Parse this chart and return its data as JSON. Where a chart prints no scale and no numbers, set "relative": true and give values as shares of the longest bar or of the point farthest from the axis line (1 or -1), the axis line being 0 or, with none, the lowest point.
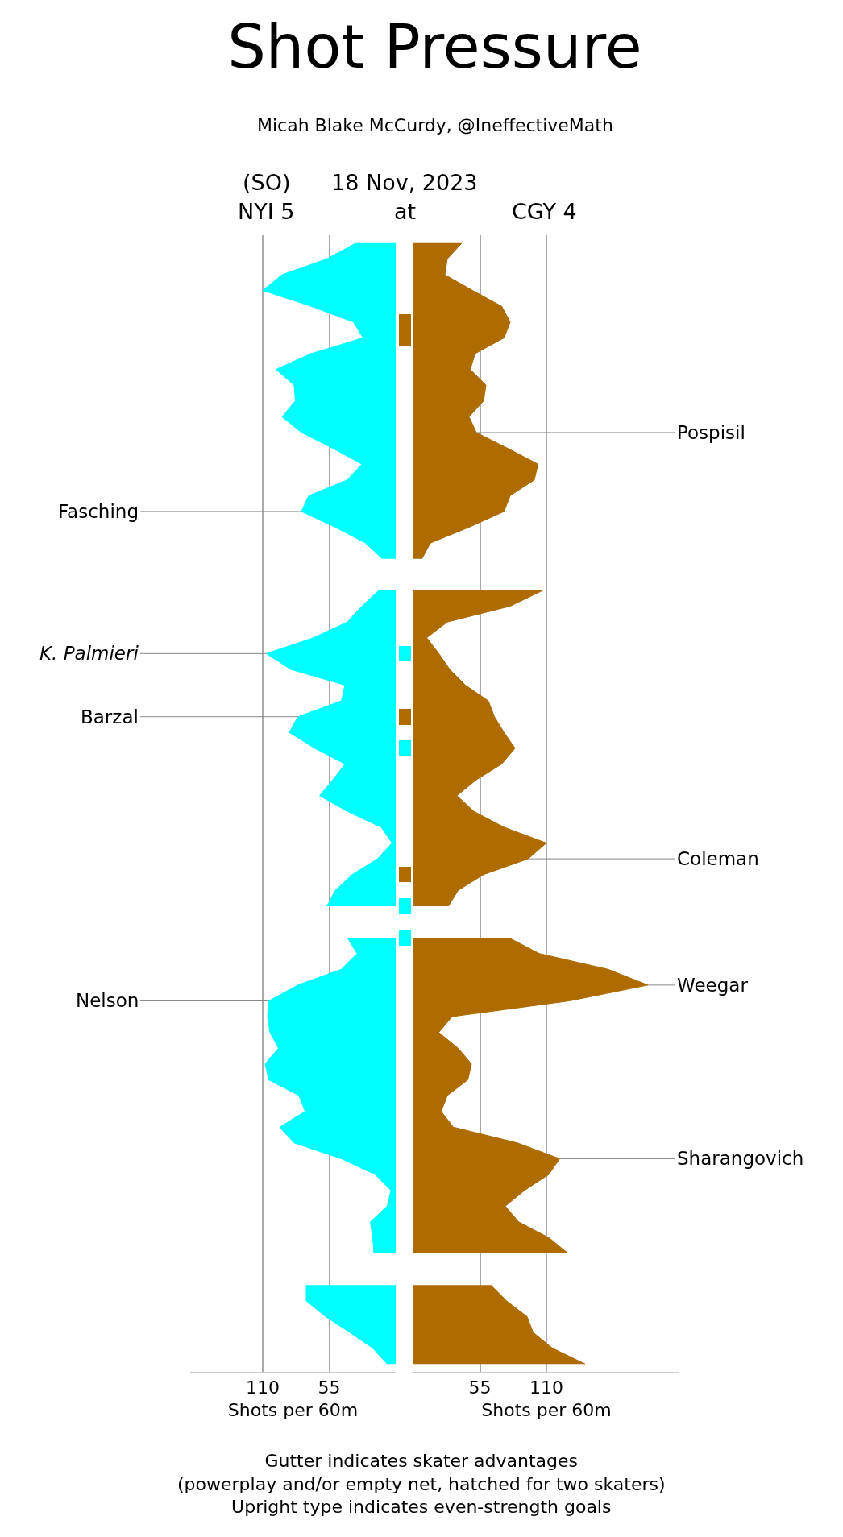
{
  "chart_data": [
    {
      "type": "area",
      "orientation": "horizontal",
      "title": "Shot Pressure",
      "subtitle": "Micah Blake McCurdy, @IneffectiveMath",
      "xlabel": "Shots per 60m",
      "xlim": [
        170,
        0
      ],
      "xticks": [
        110,
        55
      ],
      "grid": "x",
      "tick_labels": "x",
      "categories": [
        null,
        null,
        null,
        null,
        null,
        null,
        null,
        null,
        null,
        null,
        null,
        null,
        null,
        null,
        null,
        null,
        null,
        null,
        null,
        null,
        null,
        null,
        null,
        null,
        null,
        null,
        null,
        null,
        null,
        null,
        null,
        null,
        null,
        null,
        null,
        null,
        null,
        null,
        null,
        null,
        null,
        null,
        null,
        null,
        null,
        null,
        null,
        null,
        null,
        null,
        null,
        null,
        null,
        null,
        null,
        null,
        null,
        null,
        null,
        null,
        null,
        null,
        null,
        null,
        null,
        null,
        null,
        null,
        null,
        null,
        null,
        null
      ],
      "series": [
        {
          "name": "NYI 5",
          "color": "#00ffff",
          "values": [
            33,
            57,
            94,
            110,
            70,
            35,
            27,
            70,
            99,
            84,
            83,
            94,
            78,
            52,
            28,
            40,
            72,
            78,
            50,
            25,
            11,
            null,
            14,
            28,
            40,
            68,
            107,
            87,
            42,
            45,
            81,
            88,
            67,
            42,
            52,
            63,
            40,
            12,
            3,
            15,
            36,
            50,
            57,
            null,
            40,
            32,
            45,
            81,
            105,
            106,
            104,
            97,
            108,
            105,
            80,
            75,
            96,
            84,
            45,
            17,
            4,
            7,
            21,
            19,
            18,
            null,
            74,
            74,
            58,
            38,
            19,
            7
          ]
        }
      ],
      "annotations": [
        "Fasching",
        "K. Palmieri",
        "Barzal",
        "Nelson",
        "(SO)",
        "18 Nov, 2023",
        "at",
        "Gutter indicates skater advantages\n(powerplay and/or empty net, hatched for two skaters)\nUpright type indicates even-strength goals"
      ]
    },
    {
      "type": "bar",
      "orientation": "horizontal",
      "relative": true,
      "stacked": true,
      "tick_labels": false,
      "categories": [
        null,
        null,
        null,
        null,
        null,
        null,
        null,
        null,
        null,
        null,
        null,
        null,
        null,
        null,
        null,
        null,
        null,
        null,
        null,
        null,
        null,
        null,
        null,
        null,
        null,
        null,
        null,
        null,
        null,
        null,
        null,
        null,
        null,
        null,
        null,
        null,
        null,
        null,
        null,
        null,
        null,
        null,
        null,
        null,
        null,
        null,
        null,
        null,
        null,
        null,
        null,
        null,
        null,
        null,
        null,
        null,
        null,
        null,
        null,
        null,
        null,
        null,
        null,
        null,
        null,
        null,
        null,
        null,
        null,
        null,
        null,
        null
      ],
      "series": [
        {
          "color": "#00ffff",
          "values": [
            null,
            null,
            null,
            null,
            null,
            null,
            null,
            null,
            null,
            null,
            null,
            null,
            null,
            null,
            null,
            null,
            null,
            null,
            null,
            null,
            null,
            null,
            null,
            null,
            null,
            null,
            1,
            null,
            null,
            null,
            null,
            null,
            1,
            null,
            null,
            null,
            null,
            null,
            null,
            null,
            null,
            null,
            1,
            null,
            1,
            null,
            null,
            null,
            null,
            null,
            null,
            null,
            null,
            null,
            null,
            null,
            null,
            null,
            null,
            null,
            null,
            null,
            null,
            null,
            null,
            null,
            null,
            null,
            null,
            null,
            null,
            null
          ]
        },
        {
          "color": "#ad6b00",
          "values": [
            null,
            null,
            null,
            null,
            null,
            1,
            1,
            null,
            null,
            null,
            null,
            null,
            null,
            null,
            null,
            null,
            null,
            null,
            null,
            null,
            null,
            null,
            null,
            null,
            null,
            null,
            null,
            null,
            null,
            null,
            1,
            null,
            null,
            null,
            null,
            null,
            null,
            null,
            null,
            null,
            1,
            null,
            null,
            null,
            null,
            null,
            null,
            null,
            null,
            null,
            null,
            null,
            null,
            null,
            null,
            null,
            null,
            null,
            null,
            null,
            null,
            null,
            null,
            null,
            null,
            null,
            null,
            null,
            null,
            null,
            null,
            null
          ]
        }
      ]
    },
    {
      "type": "area",
      "orientation": "horizontal",
      "xlabel": "Shots per 60m",
      "xlim": [
        0,
        220
      ],
      "xticks": [
        55,
        110
      ],
      "grid": "x",
      "tick_labels": "x",
      "categories": [
        null,
        null,
        null,
        null,
        null,
        null,
        null,
        null,
        null,
        null,
        null,
        null,
        null,
        null,
        null,
        null,
        null,
        null,
        null,
        null,
        null,
        null,
        null,
        null,
        null,
        null,
        null,
        null,
        null,
        null,
        null,
        null,
        null,
        null,
        null,
        null,
        null,
        null,
        null,
        null,
        null,
        null,
        null,
        null,
        null,
        null,
        null,
        null,
        null,
        null,
        null,
        null,
        null,
        null,
        null,
        null,
        null,
        null,
        null,
        null,
        null,
        null,
        null,
        null,
        null,
        null,
        null,
        null,
        null,
        null,
        null,
        null
      ],
      "series": [
        {
          "name": "CGY 4",
          "color": "#ad6b00",
          "values": [
            40,
            28,
            26,
            49,
            73,
            80,
            75,
            51,
            47,
            60,
            58,
            46,
            52,
            78,
            103,
            100,
            80,
            75,
            46,
            14,
            7,
            null,
            107,
            80,
            28,
            11,
            21,
            30,
            43,
            62,
            67,
            75,
            84,
            73,
            52,
            36,
            50,
            75,
            110,
            95,
            58,
            37,
            29,
            null,
            79,
            104,
            161,
            194,
            129,
            32,
            21,
            37,
            48,
            45,
            28,
            23,
            33,
            86,
            121,
            112,
            92,
            76,
            87,
            112,
            128,
            null,
            64,
            77,
            94,
            99,
            115,
            142
          ]
        }
      ],
      "annotations": [
        "Pospisil",
        "Coleman",
        "Weegar",
        "Sharangovich"
      ]
    }
  ]
}
